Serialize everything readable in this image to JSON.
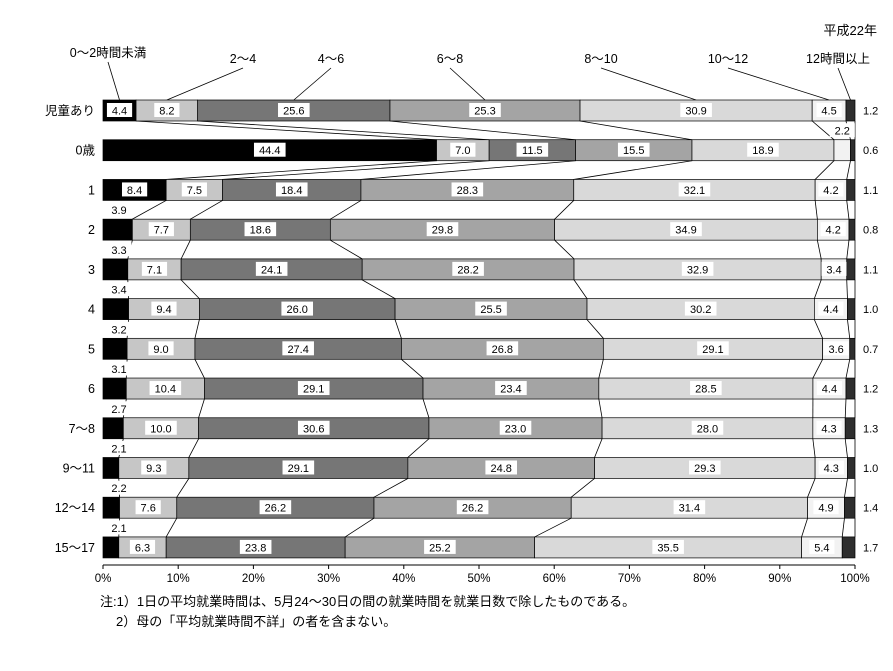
{
  "title": "平成22年",
  "notes": [
    "注:1）1日の平均就業時間は、5月24〜30日の間の就業時間を就業日数で除したものである。",
    "2）母の「平均就業時間不詳」の者を含まない。"
  ],
  "chart_data": {
    "type": "bar",
    "stacked": true,
    "orientation": "horizontal",
    "unit": "%",
    "title": "平成22年",
    "series_labels": [
      "0〜2時間未満",
      "2〜4",
      "4〜6",
      "6〜8",
      "8〜10",
      "10〜12",
      "12時間以上"
    ],
    "categories": [
      "児童あり",
      "0歳",
      "1",
      "2",
      "3",
      "4",
      "5",
      "6",
      "7〜8",
      "9〜11",
      "12〜14",
      "15〜17"
    ],
    "rows": [
      [
        4.4,
        8.2,
        25.6,
        25.3,
        30.9,
        4.5,
        1.2
      ],
      [
        44.4,
        7.0,
        11.5,
        15.5,
        18.9,
        2.2,
        0.6
      ],
      [
        8.4,
        7.5,
        18.4,
        28.3,
        32.1,
        4.2,
        1.1
      ],
      [
        3.9,
        7.7,
        18.6,
        29.8,
        34.9,
        4.2,
        0.8
      ],
      [
        3.3,
        7.1,
        24.1,
        28.2,
        32.9,
        3.4,
        1.1
      ],
      [
        3.4,
        9.4,
        26.0,
        25.5,
        30.2,
        4.4,
        1.0
      ],
      [
        3.2,
        9.0,
        27.4,
        26.8,
        29.1,
        3.6,
        0.7
      ],
      [
        3.1,
        10.4,
        29.1,
        23.4,
        28.5,
        4.4,
        1.2
      ],
      [
        2.7,
        10.0,
        30.6,
        23.0,
        28.0,
        4.3,
        1.3
      ],
      [
        2.1,
        9.3,
        29.1,
        24.8,
        29.3,
        4.3,
        1.0
      ],
      [
        2.2,
        7.6,
        26.2,
        26.2,
        31.4,
        4.9,
        1.4
      ],
      [
        2.1,
        6.3,
        23.8,
        25.2,
        35.5,
        5.4,
        1.7
      ]
    ],
    "colors": [
      "#000000",
      "#c6c6c6",
      "#767676",
      "#a4a4a4",
      "#d9d9d9",
      "#f2f2f2",
      "#2e2e2e"
    ],
    "x_ticks": [
      "0%",
      "10%",
      "20%",
      "30%",
      "40%",
      "50%",
      "60%",
      "70%",
      "80%",
      "90%",
      "100%"
    ],
    "xlim": [
      0,
      100
    ],
    "grid": false,
    "legend_position": "top-labels-with-leader-lines"
  }
}
